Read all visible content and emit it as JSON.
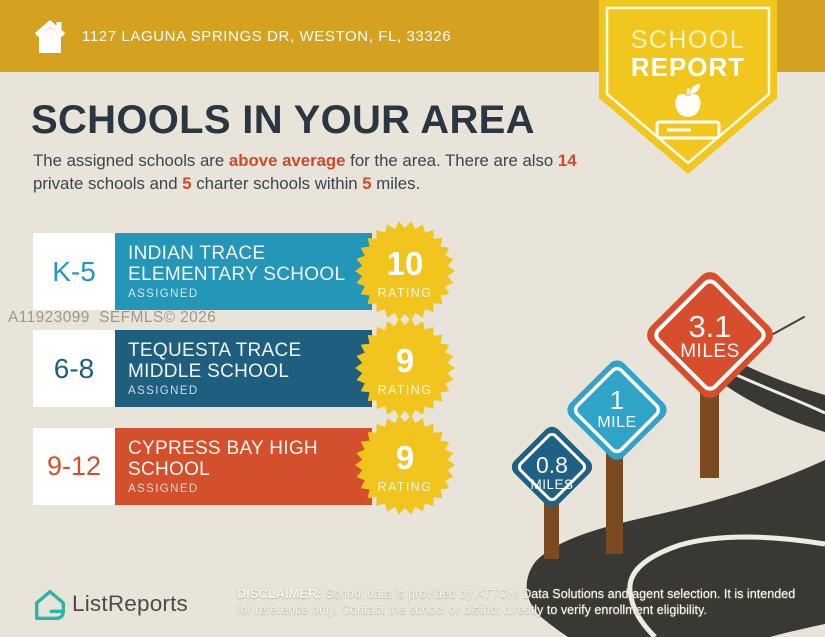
{
  "topbar": {
    "address": "1127 LAGUNA SPRINGS DR, WESTON, FL, 33326"
  },
  "ribbon": {
    "line1": "SCHOOL",
    "line2": "REPORT"
  },
  "main": {
    "title": "SCHOOLS IN YOUR AREA",
    "intro": {
      "seg1": "The assigned schools are ",
      "hl1": "above average",
      "seg2": " for the area. There are also ",
      "hl2": "14",
      "seg3": " private schools and ",
      "hl3": "5",
      "seg4": " charter schools within ",
      "hl4": "5",
      "seg5": " miles."
    }
  },
  "schools": [
    {
      "grades": "K-5",
      "line1": "INDIAN TRACE",
      "line2": "ELEMENTARY SCHOOL",
      "status": "ASSIGNED",
      "rating": "10",
      "rating_label": "RATING",
      "color": "#2496b8"
    },
    {
      "grades": "6-8",
      "line1": "TEQUESTA TRACE",
      "line2": "MIDDLE SCHOOL",
      "status": "ASSIGNED",
      "rating": "9",
      "rating_label": "RATING",
      "color": "#1e5e7f"
    },
    {
      "grades": "9-12",
      "line1": "CYPRESS BAY HIGH",
      "line2": "SCHOOL",
      "status": "ASSIGNED",
      "rating": "9",
      "rating_label": "RATING",
      "color": "#d4502c"
    }
  ],
  "signs": [
    {
      "value": "0.8",
      "unit": "MILES",
      "color": "#1f6083"
    },
    {
      "value": "1",
      "unit": "MILE",
      "color": "#2fa3c8"
    },
    {
      "value": "3.1",
      "unit": "MILES",
      "color": "#d84d2b"
    }
  ],
  "watermark": "A11923099  SEFMLS© 2026",
  "footer": {
    "brand": "ListReports",
    "disclaimer_bold": "DISCLAIMER:",
    "disclaimer_rest": " School data is provided by ATTOM Data Solutions and agent selection. It is intended for reference only. Contact the school or district directly to verify enrollment eligibility."
  },
  "colors": {
    "topbar_gold": "#d5a120",
    "ribbon_yellow": "#f2c71d",
    "star_yellow": "#f1c51e",
    "background_cream": "#e9e4d9",
    "heading_navy": "#2a3642",
    "accent_red": "#cf4a2a",
    "card_elementary": "#2496b8",
    "card_middle": "#1e5e7f",
    "card_high": "#d4502c",
    "sign_small": "#1f6083",
    "sign_medium": "#2fa3c8",
    "sign_large": "#d84d2b",
    "road_charcoal": "#3a3835",
    "post_brown": "#7b4a21",
    "logo_teal": "#2fb3a6"
  }
}
